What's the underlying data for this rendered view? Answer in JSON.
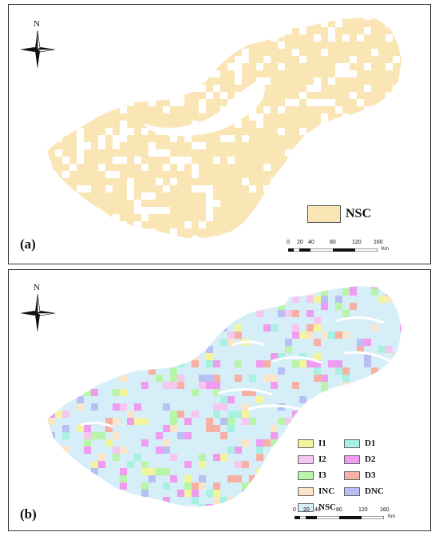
{
  "panel_a": {
    "label": "(a)",
    "north": "N",
    "legend": [
      {
        "label": "NSC",
        "color": "#fae5b4"
      }
    ]
  },
  "panel_b": {
    "label": "(b)",
    "north": "N",
    "base_color": "#d5eef7",
    "legend": [
      {
        "label": "I1",
        "color": "#f2f59b"
      },
      {
        "label": "I2",
        "color": "#f5c6f0"
      },
      {
        "label": "I3",
        "color": "#b8f5a8"
      },
      {
        "label": "INC",
        "color": "#fae5c8"
      },
      {
        "label": "NSC",
        "color": "#d5eef7"
      },
      {
        "label": "D1",
        "color": "#a8f0e0"
      },
      {
        "label": "D2",
        "color": "#ef9cf0"
      },
      {
        "label": "D3",
        "color": "#f6b0a4"
      },
      {
        "label": "DNC",
        "color": "#b7bff3"
      }
    ]
  },
  "scale": {
    "ticks": [
      "0",
      "20",
      "40",
      "80",
      "120",
      "160"
    ],
    "unit": "Km"
  }
}
